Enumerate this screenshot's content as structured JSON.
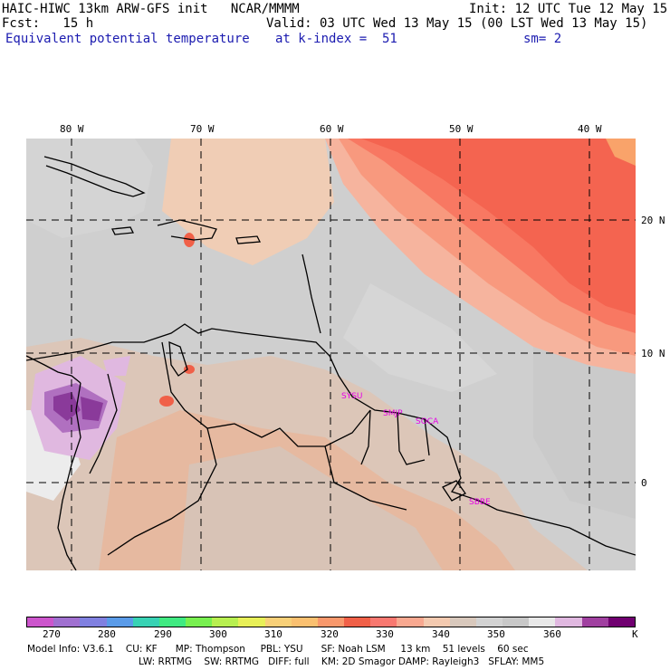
{
  "header": {
    "line1_left": "HAIC-HIWC 13km ARW-GFS init   NCAR/MMMM",
    "line1_right": "Init: 12 UTC Tue 12 May 15",
    "line2_left": "Fcst:   15 h",
    "line2_right": "Valid: 03 UTC Wed 13 May 15 (00 LST Wed 13 May 15)",
    "line3_left": "Equivalent potential temperature",
    "line3_mid": "at k-index =  51",
    "line3_right": "sm= 2"
  },
  "map": {
    "lon_labels": [
      "80 W",
      "70 W",
      "60 W",
      "50 W",
      "40 W"
    ],
    "lat_labels": [
      "20 N",
      "10 N",
      "0"
    ],
    "stations": [
      "SYSU",
      "SMJP",
      "SOCA",
      "SBBE"
    ]
  },
  "colorbar": {
    "colors": [
      "#cc55cc",
      "#a070d0",
      "#8080e0",
      "#5a9be8",
      "#38d2b4",
      "#40ea82",
      "#78f050",
      "#b8f050",
      "#e8f058",
      "#f8d078",
      "#fac070",
      "#f8986c",
      "#f06048",
      "#f87870",
      "#f8a890",
      "#f4cab0",
      "#d8c8bc",
      "#d2d2d2",
      "#c8c8c8",
      "#e8e8e8",
      "#e0b8e0",
      "#a040a0",
      "#700070"
    ],
    "labels": [
      "270",
      "280",
      "290",
      "300",
      "310",
      "320",
      "330",
      "340",
      "350",
      "360"
    ],
    "unit": "K"
  },
  "footer": {
    "line1": "Model Info: V3.6.1    CU: KF      MP: Thompson     PBL: YSU      SF: Noah LSM     13 km    51 levels    60 sec",
    "line2": "LW: RRTMG    SW: RRTMG   DIFF: full    KM: 2D Smagor DAMP: Rayleigh3   SFLAY: MM5"
  }
}
